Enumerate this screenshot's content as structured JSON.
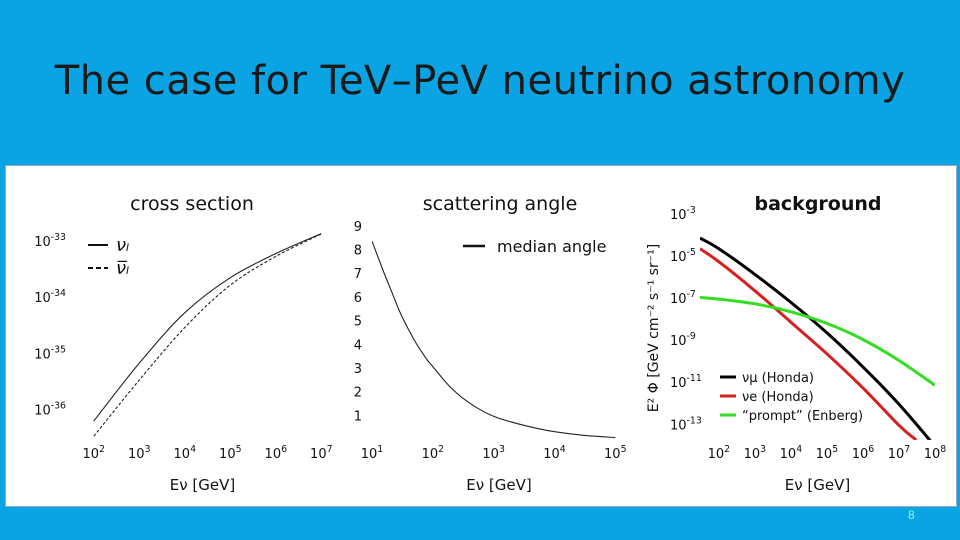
{
  "slide": {
    "title": "The case for TeV–PeV neutrino astronomy",
    "page_number": "8"
  },
  "colors": {
    "background": "#0aa3e4",
    "panel": "#ffffff",
    "honda_mu": "#000000",
    "honda_e": "#d62020",
    "prompt": "#33dd22"
  },
  "chart_data": [
    {
      "type": "line",
      "title": "cross section",
      "xlabel": "Eν [GeV]",
      "ylabel": "",
      "x_scale": "log",
      "y_scale": "log",
      "xlim": [
        30,
        20000000.0
      ],
      "ylim": [
        3e-37,
        3e-33
      ],
      "xticks": [
        {
          "v": 100,
          "m": "10",
          "e": "2"
        },
        {
          "v": 1000,
          "m": "10",
          "e": "3"
        },
        {
          "v": 10000,
          "m": "10",
          "e": "4"
        },
        {
          "v": 100000,
          "m": "10",
          "e": "5"
        },
        {
          "v": 1000000,
          "m": "10",
          "e": "6"
        },
        {
          "v": 10000000,
          "m": "10",
          "e": "7"
        }
      ],
      "yticks": [
        {
          "v": 1e-33,
          "m": "10",
          "e": "-33"
        },
        {
          "v": 1e-34,
          "m": "10",
          "e": "-34"
        },
        {
          "v": 1e-35,
          "m": "10",
          "e": "-35"
        },
        {
          "v": 1e-36,
          "m": "10",
          "e": "-36"
        }
      ],
      "legend": [
        "νₗ",
        "ν̅ₗ"
      ],
      "series": [
        {
          "name": "νₗ",
          "style": "solid",
          "x": [
            100,
            1000,
            10000,
            100000,
            1000000,
            10000000
          ],
          "y": [
            6.5e-37,
            7e-36,
            5.5e-35,
            2.3e-34,
            6.2e-34,
            1.4e-33
          ]
        },
        {
          "name": "ν̅ₗ",
          "style": "dashed",
          "x": [
            100,
            1000,
            10000,
            100000,
            1000000,
            10000000
          ],
          "y": [
            3.5e-37,
            3.5e-36,
            3e-35,
            1.7e-34,
            5.5e-34,
            1.38e-33
          ]
        }
      ]
    },
    {
      "type": "line",
      "title": "scattering angle",
      "xlabel": "Eν [GeV]",
      "ylabel": "",
      "x_scale": "log",
      "y_scale": "linear",
      "xlim": [
        10,
        150000
      ],
      "ylim": [
        0,
        9.5
      ],
      "xticks": [
        {
          "v": 10,
          "m": "10",
          "e": "1"
        },
        {
          "v": 100,
          "m": "10",
          "e": "2"
        },
        {
          "v": 1000,
          "m": "10",
          "e": "3"
        },
        {
          "v": 10000,
          "m": "10",
          "e": "4"
        },
        {
          "v": 100000,
          "m": "10",
          "e": "5"
        }
      ],
      "yticks": [
        {
          "v": 1,
          "m": "1",
          "e": ""
        },
        {
          "v": 2,
          "m": "2",
          "e": ""
        },
        {
          "v": 3,
          "m": "3",
          "e": ""
        },
        {
          "v": 4,
          "m": "4",
          "e": ""
        },
        {
          "v": 5,
          "m": "5",
          "e": ""
        },
        {
          "v": 6,
          "m": "6",
          "e": ""
        },
        {
          "v": 7,
          "m": "7",
          "e": ""
        },
        {
          "v": 8,
          "m": "8",
          "e": ""
        },
        {
          "v": 9,
          "m": "9",
          "e": ""
        }
      ],
      "legend": [
        "median angle"
      ],
      "series": [
        {
          "name": "median angle",
          "style": "solid",
          "x": [
            10,
            15,
            20,
            30,
            50,
            80,
            100,
            150,
            200,
            300,
            500,
            1000,
            2000,
            5000,
            10000,
            30000,
            100000
          ],
          "y": [
            8.4,
            7.2,
            6.4,
            5.3,
            4.2,
            3.4,
            3.1,
            2.55,
            2.2,
            1.8,
            1.4,
            1.0,
            0.75,
            0.5,
            0.35,
            0.2,
            0.1
          ]
        }
      ]
    },
    {
      "type": "line",
      "title": "background",
      "xlabel": "Eν [GeV]",
      "ylabel": "E² Φ [GeV cm⁻² s⁻¹ sr⁻¹]",
      "x_scale": "log",
      "y_scale": "log",
      "xlim": [
        30,
        100000000.0
      ],
      "ylim": [
        2e-14,
        0.001
      ],
      "xticks": [
        {
          "v": 100,
          "m": "10",
          "e": "2"
        },
        {
          "v": 1000,
          "m": "10",
          "e": "3"
        },
        {
          "v": 10000,
          "m": "10",
          "e": "4"
        },
        {
          "v": 100000,
          "m": "10",
          "e": "5"
        },
        {
          "v": 1000000,
          "m": "10",
          "e": "6"
        },
        {
          "v": 10000000,
          "m": "10",
          "e": "7"
        },
        {
          "v": 100000000,
          "m": "10",
          "e": "8"
        }
      ],
      "yticks": [
        {
          "v": 0.001,
          "m": "10",
          "e": "-3"
        },
        {
          "v": 1e-05,
          "m": "10",
          "e": "-5"
        },
        {
          "v": 1e-07,
          "m": "10",
          "e": "-7"
        },
        {
          "v": 1e-09,
          "m": "10",
          "e": "-9"
        },
        {
          "v": 1e-11,
          "m": "10",
          "e": "-11"
        },
        {
          "v": 1e-13,
          "m": "10",
          "e": "-13"
        }
      ],
      "legend": [
        "νμ (Honda)",
        "νe (Honda)",
        "“prompt” (Enberg)"
      ],
      "series": [
        {
          "name": "νμ (Honda)",
          "color": "#000000",
          "x": [
            30,
            100,
            1000,
            10000,
            100000,
            1000000,
            10000000,
            100000000
          ],
          "y": [
            8e-05,
            2.5e-05,
            1.5e-06,
            7e-08,
            2.5e-09,
            6e-11,
            1e-12,
            1e-14
          ]
        },
        {
          "name": "νe (Honda)",
          "color": "#d62020",
          "x": [
            30,
            100,
            1000,
            10000,
            100000,
            1000000,
            10000000,
            30000000
          ],
          "y": [
            2.5e-05,
            6e-06,
            2.5e-07,
            8e-09,
            2.5e-10,
            6e-12,
            1e-13,
            2e-14
          ]
        },
        {
          "name": "“prompt” (Enberg)",
          "color": "#33dd22",
          "x": [
            30,
            100,
            1000,
            10000,
            100000,
            1000000,
            10000000,
            100000000
          ],
          "y": [
            1.2e-07,
            1e-07,
            6e-08,
            2.5e-08,
            7e-09,
            1.2e-09,
            1.2e-10,
            8e-12
          ]
        }
      ]
    }
  ]
}
